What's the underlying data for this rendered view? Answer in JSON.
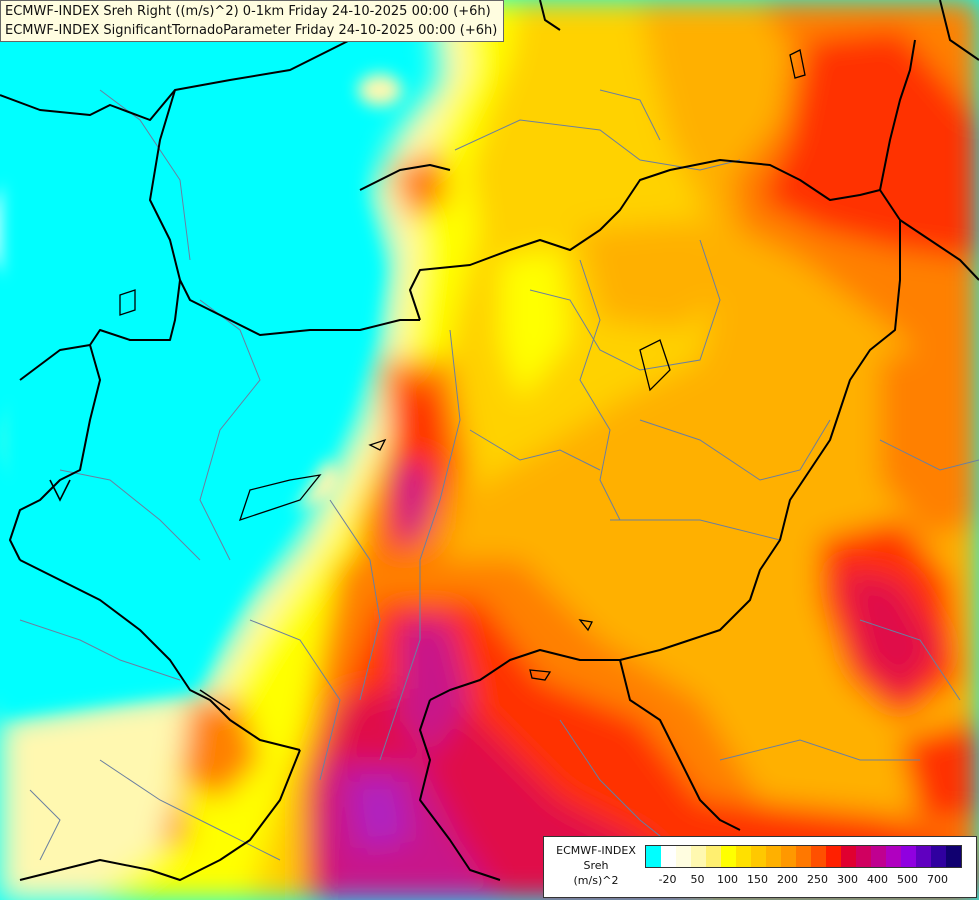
{
  "header": {
    "line1": "ECMWF-INDEX Sreh Right ((m/s)^2) 0-1km Friday 24-10-2025 00:00 (+6h)",
    "line2": "ECMWF-INDEX SignificantTornadoParameter Friday 24-10-2025 00:00 (+6h)"
  },
  "legend": {
    "title_line1": "ECMWF-INDEX",
    "title_line2": "Sreh",
    "title_line3": "(m/s)^2",
    "colors": [
      "#00ffff",
      "#ffffff",
      "#fffde0",
      "#fff8b0",
      "#ffef70",
      "#ffff00",
      "#ffe000",
      "#ffc800",
      "#ffb000",
      "#ff9800",
      "#ff7800",
      "#ff5000",
      "#ff2000",
      "#e00030",
      "#d00060",
      "#c00090",
      "#b000c0",
      "#9000e0",
      "#6000c0",
      "#3000a0",
      "#100070"
    ],
    "ticks": [
      {
        "label": "-20",
        "index": 1
      },
      {
        "label": "50",
        "index": 3
      },
      {
        "label": "100",
        "index": 5
      },
      {
        "label": "150",
        "index": 7
      },
      {
        "label": "200",
        "index": 9
      },
      {
        "label": "250",
        "index": 11
      },
      {
        "label": "300",
        "index": 13
      },
      {
        "label": "400",
        "index": 15
      },
      {
        "label": "500",
        "index": 17
      },
      {
        "label": "700",
        "index": 19
      }
    ]
  },
  "map": {
    "palette": {
      "sea": "#00ffff",
      "pale": "#fff8b0",
      "yellow": "#ffff00",
      "gold": "#ffd200",
      "orange": "#ffb000",
      "darkorange": "#ff8000",
      "red": "#ff3000",
      "crimson": "#e0104a",
      "magenta": "#c8158a",
      "purple": "#b020c0",
      "border": "#000000",
      "region": "#6a7fa0"
    }
  }
}
